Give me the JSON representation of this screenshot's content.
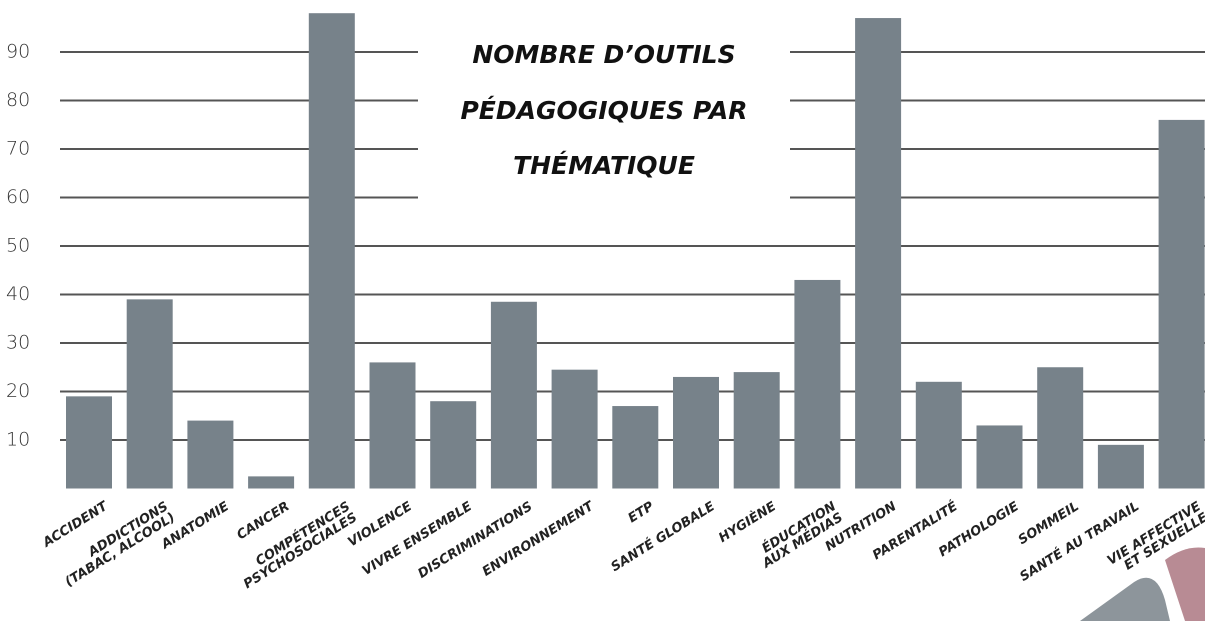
{
  "chart_data": {
    "type": "bar",
    "title": [
      "NOMBRE D’OUTILS",
      "PÉDAGOGIQUES PAR",
      "THÉMATIQUE"
    ],
    "categories": [
      "ACCIDENT",
      "ADDICTIONS\n(TABAC, ALCOOL)",
      "ANATOMIE",
      "CANCER",
      "COMPÉTENCES\nPSYCHOSOCIALES",
      "VIOLENCE",
      "VIVRE ENSEMBLE",
      "DISCRIMINATIONS",
      "ENVIRONNEMENT",
      "ETP",
      "SANTÉ GLOBALE",
      "HYGIÈNE",
      "ÉDUCATION\nAUX MÉDIAS",
      "NUTRITION",
      "PARENTALITÉ",
      "PATHOLOGIE",
      "SOMMEIL",
      "SANTÉ AU TRAVAIL",
      "VIE AFFECTIVE\nET SEXUELLE"
    ],
    "values": [
      19,
      39,
      14,
      2.5,
      98,
      26,
      18,
      38.5,
      24.5,
      17,
      23,
      24,
      43,
      97,
      22,
      13,
      25,
      9,
      76
    ],
    "color": "#77828a",
    "ylim": [
      0,
      100
    ],
    "yticks": [
      10,
      20,
      30,
      40,
      50,
      60,
      70,
      80,
      90
    ],
    "grid": true
  }
}
